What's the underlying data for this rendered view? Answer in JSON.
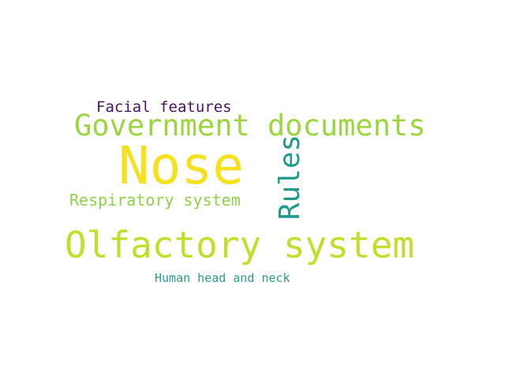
{
  "words": {
    "nose": {
      "text": "Nose",
      "color": "#f5e11e"
    },
    "government": {
      "text": "Government documents",
      "color": "#9bd63f"
    },
    "olfactory": {
      "text": "Olfactory system",
      "color": "#c3de2a"
    },
    "rules": {
      "text": "Rules",
      "color": "#1f9a8a"
    },
    "respiratory": {
      "text": "Respiratory system",
      "color": "#8fd24a"
    },
    "facial": {
      "text": "Facial features",
      "color": "#46145e"
    },
    "human": {
      "text": "Human head and neck",
      "color": "#2a9d8f"
    }
  }
}
